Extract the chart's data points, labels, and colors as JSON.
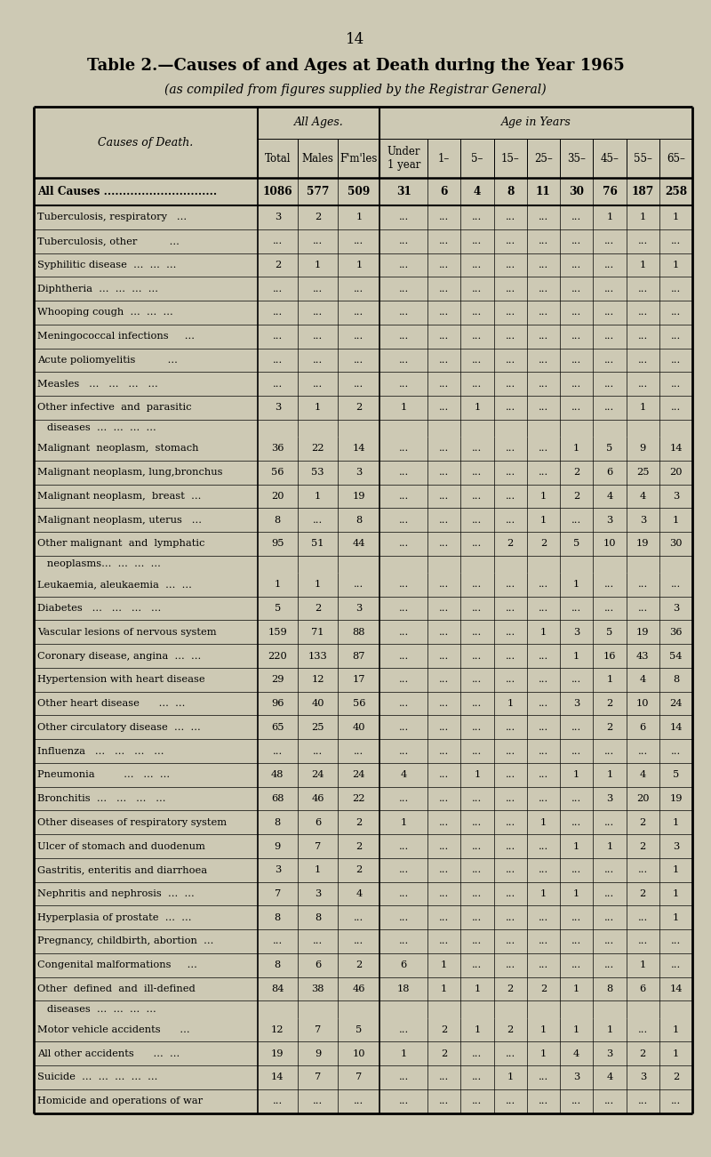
{
  "title": "Table 2.—Causes of and Ages at Death during the Year 1965",
  "subtitle": "(as compiled from figures supplied by the Registrar General)",
  "bg_color": "#cdc9b4",
  "page_number": "14",
  "rows": [
    [
      "All Causes ..............................",
      "1086",
      "577",
      "509",
      "31",
      "6",
      "4",
      "8",
      "11",
      "30",
      "76",
      "187",
      "258"
    ],
    [
      "Tuberculosis, respiratory   ...",
      "3",
      "2",
      "1",
      "...",
      "...",
      "...",
      "...",
      "...",
      "...",
      "1",
      "1",
      "1"
    ],
    [
      "Tuberculosis, other          ...",
      "...",
      "...",
      "...",
      "...",
      "...",
      "...",
      "...",
      "...",
      "...",
      "...",
      "...",
      "..."
    ],
    [
      "Syphilitic disease  ...  ...  ...",
      "2",
      "1",
      "1",
      "...",
      "...",
      "...",
      "...",
      "...",
      "...",
      "...",
      "1",
      "1"
    ],
    [
      "Diphtheria  ...  ...  ...  ...",
      "...",
      "...",
      "...",
      "...",
      "...",
      "...",
      "...",
      "...",
      "...",
      "...",
      "...",
      "..."
    ],
    [
      "Whooping cough  ...  ...  ...",
      "...",
      "...",
      "...",
      "...",
      "...",
      "...",
      "...",
      "...",
      "...",
      "...",
      "...",
      "..."
    ],
    [
      "Meningococcal infections     ...",
      "...",
      "...",
      "...",
      "...",
      "...",
      "...",
      "...",
      "...",
      "...",
      "...",
      "...",
      "..."
    ],
    [
      "Acute poliomyelitis          ...",
      "...",
      "...",
      "...",
      "...",
      "...",
      "...",
      "...",
      "...",
      "...",
      "...",
      "...",
      "..."
    ],
    [
      "Measles   ...   ...   ...   ...",
      "...",
      "...",
      "...",
      "...",
      "...",
      "...",
      "...",
      "...",
      "...",
      "...",
      "...",
      "..."
    ],
    [
      "Other infective  and  parasitic",
      "3",
      "1",
      "2",
      "1",
      "...",
      "1",
      "...",
      "...",
      "...",
      "...",
      "1",
      "..."
    ],
    [
      "   diseases  ...  ...  ...  ...",
      "",
      "",
      "",
      "",
      "",
      "",
      "",
      "",
      "",
      "",
      "",
      ""
    ],
    [
      "Malignant  neoplasm,  stomach",
      "36",
      "22",
      "14",
      "...",
      "...",
      "...",
      "...",
      "...",
      "1",
      "5",
      "9",
      "14"
    ],
    [
      "Malignant neoplasm, lung,bronchus",
      "56",
      "53",
      "3",
      "...",
      "...",
      "...",
      "...",
      "...",
      "2",
      "6",
      "25",
      "20"
    ],
    [
      "Malignant neoplasm,  breast  ...",
      "20",
      "1",
      "19",
      "...",
      "...",
      "...",
      "...",
      "1",
      "2",
      "4",
      "4",
      "3"
    ],
    [
      "Malignant neoplasm, uterus   ...",
      "8",
      "...",
      "8",
      "...",
      "...",
      "...",
      "...",
      "1",
      "...",
      "3",
      "3",
      "1"
    ],
    [
      "Other malignant  and  lymphatic",
      "95",
      "51",
      "44",
      "...",
      "...",
      "...",
      "2",
      "2",
      "5",
      "10",
      "19",
      "30"
    ],
    [
      "   neoplasms...  ...  ...  ...",
      "",
      "",
      "",
      "",
      "",
      "",
      "",
      "",
      "",
      "",
      "",
      ""
    ],
    [
      "Leukaemia, aleukaemia  ...  ...",
      "1",
      "1",
      "...",
      "...",
      "...",
      "...",
      "...",
      "...",
      "1",
      "...",
      "...",
      "..."
    ],
    [
      "Diabetes   ...   ...   ...   ...",
      "5",
      "2",
      "3",
      "...",
      "...",
      "...",
      "...",
      "...",
      "...",
      "...",
      "...",
      "3"
    ],
    [
      "Vascular lesions of nervous system",
      "159",
      "71",
      "88",
      "...",
      "...",
      "...",
      "...",
      "1",
      "3",
      "5",
      "19",
      "36"
    ],
    [
      "Coronary disease, angina  ...  ...",
      "220",
      "133",
      "87",
      "...",
      "...",
      "...",
      "...",
      "...",
      "1",
      "16",
      "43",
      "54"
    ],
    [
      "Hypertension with heart disease",
      "29",
      "12",
      "17",
      "...",
      "...",
      "...",
      "...",
      "...",
      "...",
      "1",
      "4",
      "8"
    ],
    [
      "Other heart disease      ...  ...",
      "96",
      "40",
      "56",
      "...",
      "...",
      "...",
      "1",
      "...",
      "3",
      "2",
      "10",
      "24"
    ],
    [
      "Other circulatory disease  ...  ...",
      "65",
      "25",
      "40",
      "...",
      "...",
      "...",
      "...",
      "...",
      "...",
      "2",
      "6",
      "14"
    ],
    [
      "Influenza   ...   ...   ...   ...",
      "...",
      "...",
      "...",
      "...",
      "...",
      "...",
      "...",
      "...",
      "...",
      "...",
      "...",
      "..."
    ],
    [
      "Pneumonia         ...   ...  ...",
      "48",
      "24",
      "24",
      "4",
      "...",
      "1",
      "...",
      "...",
      "1",
      "1",
      "4",
      "5"
    ],
    [
      "Bronchitis  ...   ...   ...   ...",
      "68",
      "46",
      "22",
      "...",
      "...",
      "...",
      "...",
      "...",
      "...",
      "3",
      "20",
      "19"
    ],
    [
      "Other diseases of respiratory system",
      "8",
      "6",
      "2",
      "1",
      "...",
      "...",
      "...",
      "1",
      "...",
      "...",
      "2",
      "1"
    ],
    [
      "Ulcer of stomach and duodenum",
      "9",
      "7",
      "2",
      "...",
      "...",
      "...",
      "...",
      "...",
      "1",
      "1",
      "2",
      "3"
    ],
    [
      "Gastritis, enteritis and diarrhoea",
      "3",
      "1",
      "2",
      "...",
      "...",
      "...",
      "...",
      "...",
      "...",
      "...",
      "...",
      "1"
    ],
    [
      "Nephritis and nephrosis  ...  ...",
      "7",
      "3",
      "4",
      "...",
      "...",
      "...",
      "...",
      "1",
      "1",
      "...",
      "2",
      "1"
    ],
    [
      "Hyperplasia of prostate  ...  ...",
      "8",
      "8",
      "...",
      "...",
      "...",
      "...",
      "...",
      "...",
      "...",
      "...",
      "...",
      "1"
    ],
    [
      "Pregnancy, childbirth, abortion  ...",
      "...",
      "...",
      "...",
      "...",
      "...",
      "...",
      "...",
      "...",
      "...",
      "...",
      "...",
      "..."
    ],
    [
      "Congenital malformations     ...",
      "8",
      "6",
      "2",
      "6",
      "1",
      "...",
      "...",
      "...",
      "...",
      "...",
      "1",
      "..."
    ],
    [
      "Other  defined  and  ill-defined",
      "84",
      "38",
      "46",
      "18",
      "1",
      "1",
      "2",
      "2",
      "1",
      "8",
      "6",
      "14"
    ],
    [
      "   diseases  ...  ...  ...  ...",
      "",
      "",
      "",
      "",
      "",
      "",
      "",
      "",
      "",
      "",
      "",
      ""
    ],
    [
      "Motor vehicle accidents      ...",
      "12",
      "7",
      "5",
      "...",
      "2",
      "1",
      "2",
      "1",
      "1",
      "1",
      "...",
      "1"
    ],
    [
      "All other accidents      ...  ...",
      "19",
      "9",
      "10",
      "1",
      "2",
      "...",
      "...",
      "1",
      "4",
      "3",
      "2",
      "1"
    ],
    [
      "Suicide  ...  ...  ...  ...  ...",
      "14",
      "7",
      "7",
      "...",
      "...",
      "...",
      "1",
      "...",
      "3",
      "4",
      "3",
      "2"
    ],
    [
      "Homicide and operations of war",
      "...",
      "...",
      "...",
      "...",
      "...",
      "...",
      "...",
      "...",
      "...",
      "...",
      "...",
      "..."
    ]
  ],
  "multiline_second_rows": [
    10,
    16,
    35
  ],
  "all_causes_row": 0,
  "font_size_title": 13,
  "font_size_subtitle": 10,
  "font_size_table": 8.2,
  "font_size_header": 9,
  "font_size_pagenum": 12
}
